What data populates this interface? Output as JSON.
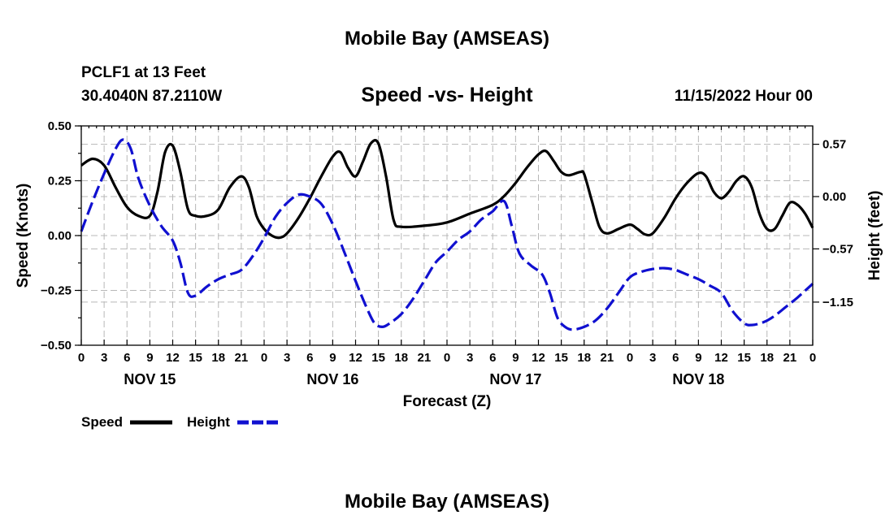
{
  "header": {
    "title": "Mobile Bay (AMSEAS)",
    "station": "PCLF1 at 13 Feet",
    "coords": "30.4040N  87.2110W",
    "subtitle": "Speed -vs- Height",
    "datetime": "11/15/2022 Hour 00"
  },
  "footer": {
    "title": "Mobile Bay (AMSEAS)"
  },
  "chart_data": {
    "type": "line",
    "title": "Speed -vs- Height",
    "xlabel": "Forecast (Z)",
    "ylabel_left": "Speed (Knots)",
    "ylabel_right": "Height (feet)",
    "x_range_hours": [
      0,
      96
    ],
    "ylim_left": [
      -0.5,
      0.5
    ],
    "ylim_right": [
      -1.62,
      0.77
    ],
    "left_ticks": [
      {
        "v": 0.5,
        "label": "0.50"
      },
      {
        "v": 0.25,
        "label": "0.25"
      },
      {
        "v": 0.0,
        "label": "0.00"
      },
      {
        "v": -0.25,
        "label": "−0.25"
      },
      {
        "v": -0.5,
        "label": "−0.50"
      }
    ],
    "right_ticks": [
      {
        "v": 0.57,
        "label": "0.57"
      },
      {
        "v": 0.0,
        "label": "0.00"
      },
      {
        "v": -0.57,
        "label": "−0.57"
      },
      {
        "v": -1.15,
        "label": "−1.15"
      }
    ],
    "x_tick_labels": [
      "0",
      "3",
      "6",
      "9",
      "12",
      "15",
      "18",
      "21",
      "0",
      "3",
      "6",
      "9",
      "12",
      "15",
      "18",
      "21",
      "0",
      "3",
      "6",
      "9",
      "12",
      "15",
      "18",
      "21",
      "0",
      "3",
      "6",
      "9",
      "12",
      "15",
      "18",
      "21",
      "0"
    ],
    "day_labels": [
      {
        "hour": 9,
        "label": "NOV 15"
      },
      {
        "hour": 33,
        "label": "NOV 16"
      },
      {
        "hour": 57,
        "label": "NOV 17"
      },
      {
        "hour": 81,
        "label": "NOV 18"
      }
    ],
    "legend": {
      "speed_label": "Speed",
      "height_label": "Height"
    },
    "series": [
      {
        "name": "Speed",
        "axis": "left",
        "color": "#000000",
        "dash": "solid",
        "points": [
          [
            0,
            0.32
          ],
          [
            1.5,
            0.35
          ],
          [
            3,
            0.32
          ],
          [
            4.5,
            0.22
          ],
          [
            6,
            0.13
          ],
          [
            7.5,
            0.09
          ],
          [
            9,
            0.09
          ],
          [
            10,
            0.2
          ],
          [
            11,
            0.38
          ],
          [
            12,
            0.41
          ],
          [
            13,
            0.29
          ],
          [
            14,
            0.12
          ],
          [
            15,
            0.09
          ],
          [
            16.5,
            0.09
          ],
          [
            18,
            0.12
          ],
          [
            19.5,
            0.22
          ],
          [
            21,
            0.27
          ],
          [
            22,
            0.22
          ],
          [
            23,
            0.09
          ],
          [
            24,
            0.03
          ],
          [
            25,
            0.0
          ],
          [
            26,
            -0.01
          ],
          [
            27,
            0.01
          ],
          [
            28.5,
            0.08
          ],
          [
            30,
            0.17
          ],
          [
            31.5,
            0.27
          ],
          [
            33,
            0.36
          ],
          [
            34,
            0.38
          ],
          [
            35,
            0.31
          ],
          [
            36,
            0.27
          ],
          [
            37,
            0.34
          ],
          [
            38,
            0.42
          ],
          [
            39,
            0.42
          ],
          [
            40,
            0.27
          ],
          [
            41,
            0.07
          ],
          [
            42,
            0.04
          ],
          [
            45,
            0.045
          ],
          [
            48,
            0.06
          ],
          [
            51,
            0.1
          ],
          [
            54,
            0.14
          ],
          [
            55.5,
            0.18
          ],
          [
            57,
            0.24
          ],
          [
            58.5,
            0.31
          ],
          [
            60,
            0.37
          ],
          [
            61,
            0.385
          ],
          [
            62,
            0.34
          ],
          [
            63,
            0.29
          ],
          [
            64,
            0.275
          ],
          [
            65.5,
            0.29
          ],
          [
            66,
            0.28
          ],
          [
            67,
            0.16
          ],
          [
            68,
            0.04
          ],
          [
            69,
            0.01
          ],
          [
            70.5,
            0.03
          ],
          [
            72,
            0.05
          ],
          [
            73,
            0.03
          ],
          [
            74,
            0.005
          ],
          [
            75,
            0.01
          ],
          [
            76.5,
            0.08
          ],
          [
            78,
            0.17
          ],
          [
            79.5,
            0.24
          ],
          [
            81,
            0.285
          ],
          [
            82,
            0.27
          ],
          [
            83,
            0.2
          ],
          [
            84,
            0.17
          ],
          [
            85,
            0.2
          ],
          [
            86,
            0.25
          ],
          [
            87,
            0.27
          ],
          [
            88,
            0.22
          ],
          [
            89,
            0.1
          ],
          [
            90,
            0.03
          ],
          [
            91,
            0.03
          ],
          [
            92,
            0.09
          ],
          [
            93,
            0.15
          ],
          [
            94,
            0.14
          ],
          [
            95,
            0.1
          ],
          [
            96,
            0.035
          ]
        ]
      },
      {
        "name": "Height",
        "axis": "right",
        "color": "#1010d0",
        "dash": "dashed",
        "points": [
          [
            0,
            -0.38
          ],
          [
            1.5,
            -0.05
          ],
          [
            3,
            0.25
          ],
          [
            4.5,
            0.52
          ],
          [
            5.5,
            0.62
          ],
          [
            6.5,
            0.52
          ],
          [
            7.5,
            0.2
          ],
          [
            9,
            -0.1
          ],
          [
            10.5,
            -0.32
          ],
          [
            12,
            -0.48
          ],
          [
            13,
            -0.72
          ],
          [
            14,
            -1.05
          ],
          [
            15,
            -1.08
          ],
          [
            16.5,
            -0.98
          ],
          [
            18,
            -0.9
          ],
          [
            19.5,
            -0.85
          ],
          [
            21,
            -0.8
          ],
          [
            22.5,
            -0.65
          ],
          [
            24,
            -0.45
          ],
          [
            25.5,
            -0.22
          ],
          [
            27,
            -0.07
          ],
          [
            28.5,
            0.02
          ],
          [
            30,
            0.0
          ],
          [
            31.5,
            -0.08
          ],
          [
            33,
            -0.3
          ],
          [
            34.5,
            -0.6
          ],
          [
            36,
            -0.92
          ],
          [
            37.5,
            -1.22
          ],
          [
            38.5,
            -1.38
          ],
          [
            39.5,
            -1.42
          ],
          [
            40.5,
            -1.38
          ],
          [
            42,
            -1.28
          ],
          [
            43.5,
            -1.12
          ],
          [
            45,
            -0.92
          ],
          [
            46.5,
            -0.72
          ],
          [
            48,
            -0.6
          ],
          [
            49.5,
            -0.47
          ],
          [
            51,
            -0.38
          ],
          [
            52.5,
            -0.25
          ],
          [
            54,
            -0.16
          ],
          [
            55.5,
            -0.05
          ],
          [
            56.5,
            -0.32
          ],
          [
            57.5,
            -0.62
          ],
          [
            59,
            -0.75
          ],
          [
            60.5,
            -0.85
          ],
          [
            61.5,
            -1.05
          ],
          [
            62.5,
            -1.32
          ],
          [
            63.5,
            -1.42
          ],
          [
            64.5,
            -1.45
          ],
          [
            66,
            -1.42
          ],
          [
            67.5,
            -1.35
          ],
          [
            69,
            -1.22
          ],
          [
            70.5,
            -1.05
          ],
          [
            72,
            -0.88
          ],
          [
            73.5,
            -0.82
          ],
          [
            75,
            -0.79
          ],
          [
            76.5,
            -0.78
          ],
          [
            78,
            -0.8
          ],
          [
            79.5,
            -0.85
          ],
          [
            81,
            -0.9
          ],
          [
            82.5,
            -0.97
          ],
          [
            84,
            -1.05
          ],
          [
            85.5,
            -1.25
          ],
          [
            87,
            -1.38
          ],
          [
            88,
            -1.4
          ],
          [
            89.5,
            -1.37
          ],
          [
            91,
            -1.3
          ],
          [
            92.5,
            -1.2
          ],
          [
            94,
            -1.1
          ],
          [
            96,
            -0.95
          ]
        ]
      }
    ]
  }
}
